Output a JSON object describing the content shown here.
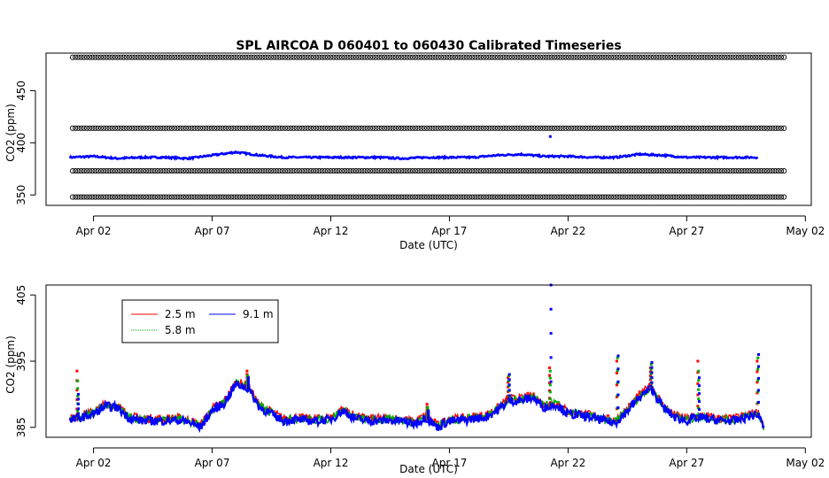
{
  "chart_data": [
    {
      "type": "scatter",
      "title": "SPL   AIRCOA  D    060401  to  060430   Calibrated Timeseries",
      "xlabel": "Date (UTC)",
      "ylabel": "CO2 (ppm)",
      "xlim": [
        "2006-03-31T00:00",
        "2006-05-02T06:00"
      ],
      "ylim": [
        340,
        486
      ],
      "x_ticks": [
        "Apr 02",
        "Apr 07",
        "Apr 12",
        "Apr 17",
        "Apr 22",
        "Apr 27",
        "May 02"
      ],
      "x_tick_dates": [
        "2006-04-02",
        "2006-04-07",
        "2006-04-12",
        "2006-04-17",
        "2006-04-22",
        "2006-04-27",
        "2006-05-02"
      ],
      "y_ticks": [
        350,
        400,
        450
      ],
      "calibration_levels": [
        348,
        373,
        414,
        482
      ],
      "calibration_color": "#000000",
      "series_color": "#0000ff",
      "series_range": [
        "2006-04-01",
        "2006-04-30"
      ],
      "profile": [
        [
          "2006-04-01",
          386
        ],
        [
          "2006-04-02",
          387
        ],
        [
          "2006-04-03",
          385
        ],
        [
          "2006-04-04",
          386
        ],
        [
          "2006-04-05",
          386
        ],
        [
          "2006-04-06",
          385
        ],
        [
          "2006-04-07",
          388
        ],
        [
          "2006-04-08",
          391
        ],
        [
          "2006-04-09",
          388
        ],
        [
          "2006-04-10",
          386
        ],
        [
          "2006-04-11",
          386
        ],
        [
          "2006-04-12",
          386
        ],
        [
          "2006-04-13",
          386
        ],
        [
          "2006-04-14",
          386
        ],
        [
          "2006-04-15",
          385
        ],
        [
          "2006-04-16",
          386
        ],
        [
          "2006-04-17",
          386
        ],
        [
          "2006-04-18",
          386
        ],
        [
          "2006-04-19",
          388
        ],
        [
          "2006-04-20",
          389
        ],
        [
          "2006-04-21",
          387
        ],
        [
          "2006-04-22",
          387
        ],
        [
          "2006-04-23",
          386
        ],
        [
          "2006-04-24",
          386
        ],
        [
          "2006-04-25",
          389
        ],
        [
          "2006-04-26",
          388
        ],
        [
          "2006-04-27",
          386
        ],
        [
          "2006-04-28",
          386
        ],
        [
          "2006-04-29",
          386
        ],
        [
          "2006-04-30",
          386
        ]
      ],
      "outliers": [
        [
          "2006-04-21T06:00",
          406
        ]
      ],
      "grid": false,
      "legend": null
    },
    {
      "type": "line",
      "title": "",
      "xlabel": "Date (UTC)",
      "ylabel": "CO2 (ppm)",
      "xlim": [
        "2006-03-31T00:00",
        "2006-05-02T06:00"
      ],
      "ylim": [
        383.5,
        406.5
      ],
      "x_ticks": [
        "Apr 02",
        "Apr 07",
        "Apr 12",
        "Apr 17",
        "Apr 22",
        "Apr 27",
        "May 02"
      ],
      "x_tick_dates": [
        "2006-04-02",
        "2006-04-07",
        "2006-04-12",
        "2006-04-17",
        "2006-04-22",
        "2006-04-27",
        "2006-05-02"
      ],
      "y_ticks": [
        385,
        395,
        405
      ],
      "legend_placement": "top-left",
      "grid": false,
      "series": [
        {
          "name": "2.5 m",
          "color": "#ff0000"
        },
        {
          "name": "5.8 m",
          "color": "#00aa00"
        },
        {
          "name": "9.1 m",
          "color": "#0000ff"
        }
      ],
      "x": [
        "2006-04-01",
        "2006-04-01T12:00",
        "2006-04-02",
        "2006-04-02T12:00",
        "2006-04-03",
        "2006-04-03T12:00",
        "2006-04-04",
        "2006-04-04T12:00",
        "2006-04-05",
        "2006-04-05T12:00",
        "2006-04-06",
        "2006-04-06T12:00",
        "2006-04-07",
        "2006-04-07T12:00",
        "2006-04-08",
        "2006-04-08T12:00",
        "2006-04-09",
        "2006-04-09T12:00",
        "2006-04-10",
        "2006-04-10T12:00",
        "2006-04-11",
        "2006-04-11T12:00",
        "2006-04-12",
        "2006-04-12T12:00",
        "2006-04-13",
        "2006-04-13T12:00",
        "2006-04-14",
        "2006-04-14T12:00",
        "2006-04-15",
        "2006-04-15T12:00",
        "2006-04-16",
        "2006-04-16T12:00",
        "2006-04-17",
        "2006-04-17T12:00",
        "2006-04-18",
        "2006-04-18T12:00",
        "2006-04-19",
        "2006-04-19T12:00",
        "2006-04-20",
        "2006-04-20T12:00",
        "2006-04-21",
        "2006-04-21T12:00",
        "2006-04-22",
        "2006-04-22T12:00",
        "2006-04-23",
        "2006-04-23T12:00",
        "2006-04-24",
        "2006-04-24T12:00",
        "2006-04-25",
        "2006-04-25T12:00",
        "2006-04-26",
        "2006-04-26T12:00",
        "2006-04-27",
        "2006-04-27T12:00",
        "2006-04-28",
        "2006-04-28T12:00",
        "2006-04-29",
        "2006-04-29T12:00",
        "2006-04-30",
        "2006-04-30T06:00"
      ],
      "base_values": [
        386.0,
        386.5,
        387.0,
        388.2,
        388.0,
        386.4,
        386.0,
        386.0,
        386.0,
        386.1,
        385.8,
        385.0,
        387.5,
        388.6,
        391.5,
        391.0,
        388.0,
        387.0,
        386.0,
        386.2,
        386.0,
        386.0,
        386.2,
        387.5,
        386.4,
        386.0,
        386.0,
        386.0,
        386.0,
        385.5,
        386.5,
        385.0,
        386.0,
        386.0,
        386.3,
        386.5,
        387.5,
        389.0,
        389.0,
        389.5,
        388.0,
        388.5,
        387.0,
        386.8,
        386.5,
        386.0,
        385.7,
        387.5,
        389.5,
        391.0,
        388.0,
        386.5,
        386.0,
        386.5,
        386.2,
        386.0,
        386.0,
        386.5,
        387.0,
        385.0
      ],
      "spikes": [
        {
          "x": "2006-04-01T08:00",
          "values": [
            393.5,
            392.0,
            390.0
          ]
        },
        {
          "x": "2006-04-08T12:00",
          "values": [
            393.5,
            392.8,
            392.5
          ]
        },
        {
          "x": "2006-04-16T02:00",
          "values": [
            388.5,
            388.0,
            387.5
          ]
        },
        {
          "x": "2006-04-19T12:00",
          "values": [
            392.5,
            392.8,
            393.0
          ]
        },
        {
          "x": "2006-04-21T06:00",
          "values": [
            394.0,
            393.5,
            406.5
          ]
        },
        {
          "x": "2006-04-24T02:00",
          "values": [
            395.0,
            395.5,
            395.8
          ]
        },
        {
          "x": "2006-04-25T12:00",
          "values": [
            394.0,
            394.5,
            394.8
          ]
        },
        {
          "x": "2006-04-27T12:00",
          "values": [
            395.0,
            393.5,
            392.5
          ]
        },
        {
          "x": "2006-04-30T00:00",
          "values": [
            395.0,
            395.5,
            396.0
          ]
        }
      ]
    }
  ]
}
